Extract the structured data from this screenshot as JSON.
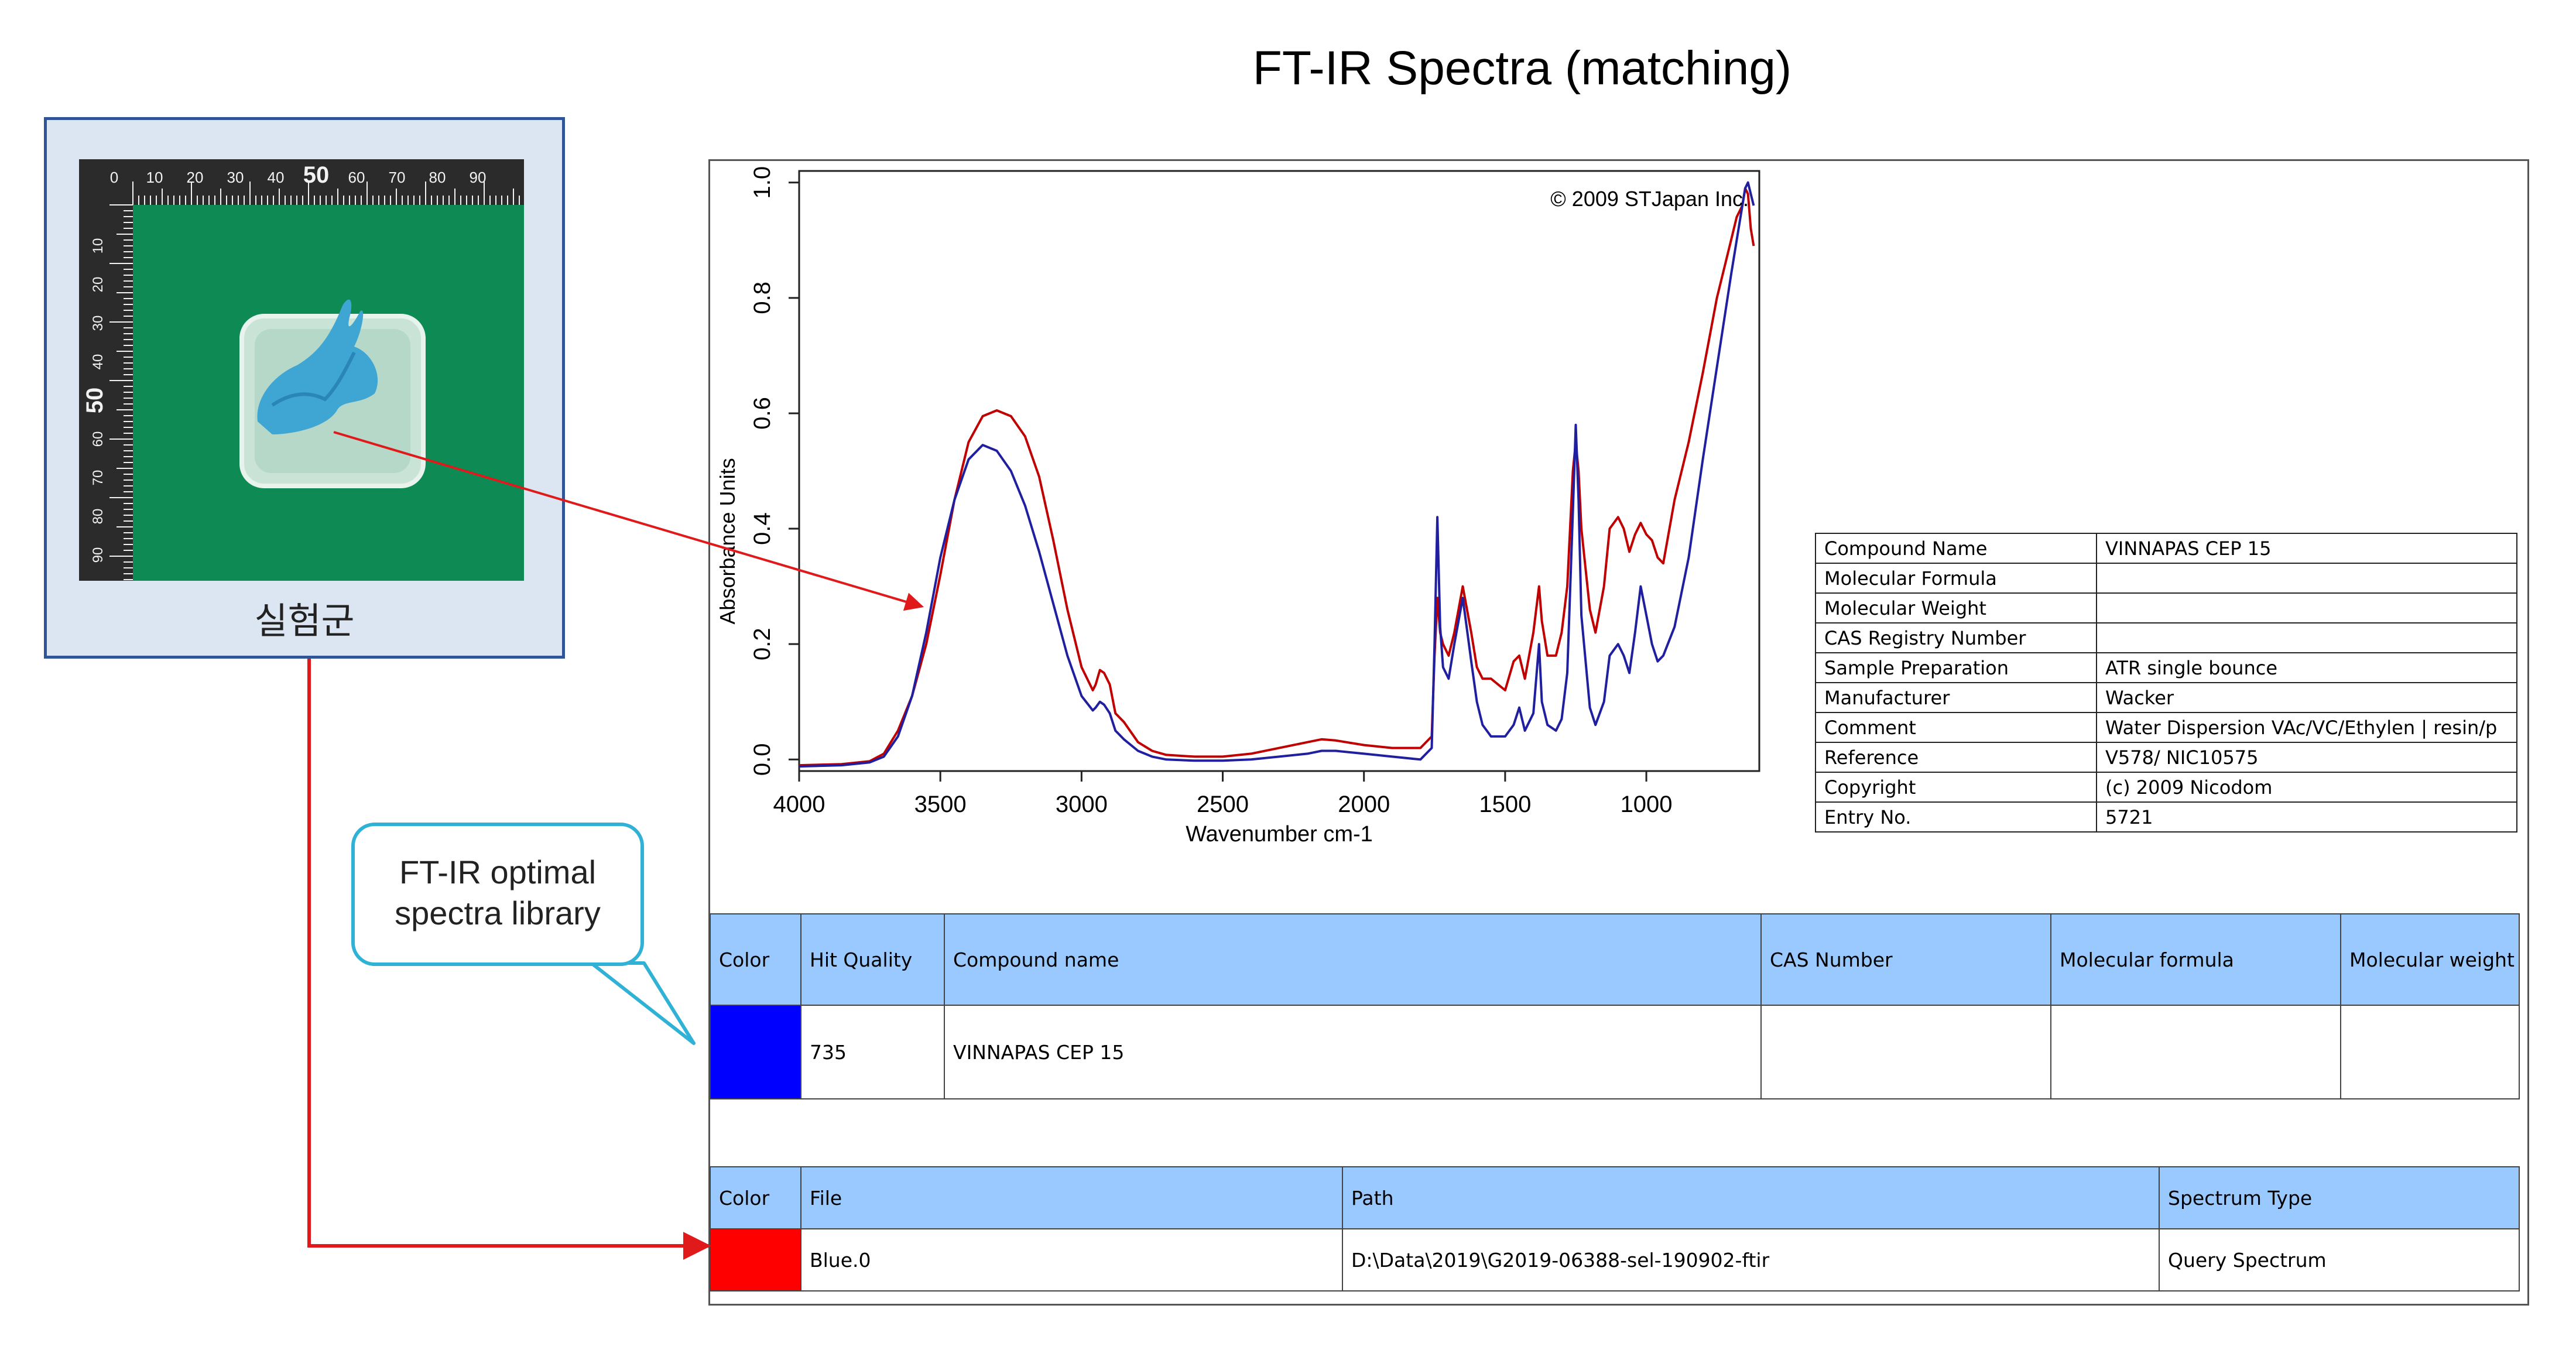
{
  "title": "FT-IR Spectra (matching)",
  "sample": {
    "caption": "실험군",
    "ruler_top_labels": [
      "0",
      "10",
      "20",
      "30",
      "40",
      "50",
      "60",
      "70",
      "80",
      "90"
    ],
    "ruler_left_labels": [
      "10",
      "20",
      "30",
      "40",
      "50",
      "60",
      "70",
      "80",
      "90"
    ]
  },
  "callout": {
    "line1": "FT-IR optimal",
    "line2": "spectra library"
  },
  "chart_data": {
    "type": "line",
    "title": "",
    "watermark": "© 2009 STJapan Inc.",
    "xlabel": "Wavenumber cm-1",
    "ylabel": "Absorbance Units",
    "xlim": [
      4000,
      600
    ],
    "ylim": [
      -0.02,
      1.02
    ],
    "x_ticks": [
      4000,
      3500,
      3000,
      2500,
      2000,
      1500,
      1000
    ],
    "x_tick_labels": [
      "4000",
      "3500",
      "3000",
      "2500",
      "2000",
      "1500",
      "1000"
    ],
    "y_ticks": [
      0.0,
      0.2,
      0.4,
      0.6,
      0.8,
      1.0
    ],
    "y_tick_labels": [
      "0.0",
      "0.2",
      "0.4",
      "0.6",
      "0.8",
      "1.0"
    ],
    "grid": false,
    "series": [
      {
        "color": "#c00000",
        "x": [
          4000,
          3850,
          3750,
          3700,
          3650,
          3600,
          3550,
          3500,
          3450,
          3400,
          3350,
          3300,
          3250,
          3200,
          3150,
          3100,
          3050,
          3000,
          2960,
          2950,
          2935,
          2920,
          2900,
          2880,
          2870,
          2850,
          2800,
          2750,
          2700,
          2600,
          2500,
          2400,
          2300,
          2200,
          2150,
          2100,
          2000,
          1900,
          1800,
          1760,
          1750,
          1740,
          1730,
          1720,
          1700,
          1680,
          1650,
          1620,
          1600,
          1580,
          1550,
          1500,
          1470,
          1450,
          1430,
          1400,
          1380,
          1370,
          1350,
          1320,
          1300,
          1280,
          1260,
          1250,
          1240,
          1230,
          1200,
          1180,
          1150,
          1130,
          1100,
          1080,
          1060,
          1040,
          1020,
          1000,
          980,
          960,
          940,
          900,
          850,
          800,
          750,
          700,
          680,
          660,
          650,
          640,
          630,
          620
        ],
        "y": [
          -0.01,
          -0.008,
          -0.003,
          0.01,
          0.05,
          0.11,
          0.2,
          0.32,
          0.45,
          0.55,
          0.595,
          0.605,
          0.595,
          0.56,
          0.49,
          0.38,
          0.26,
          0.16,
          0.12,
          0.13,
          0.155,
          0.15,
          0.13,
          0.08,
          0.075,
          0.065,
          0.03,
          0.015,
          0.008,
          0.005,
          0.005,
          0.01,
          0.02,
          0.03,
          0.035,
          0.033,
          0.025,
          0.02,
          0.02,
          0.04,
          0.18,
          0.28,
          0.22,
          0.2,
          0.18,
          0.22,
          0.3,
          0.22,
          0.16,
          0.14,
          0.14,
          0.12,
          0.17,
          0.18,
          0.14,
          0.22,
          0.3,
          0.24,
          0.18,
          0.18,
          0.22,
          0.3,
          0.5,
          0.55,
          0.5,
          0.4,
          0.26,
          0.22,
          0.3,
          0.4,
          0.42,
          0.4,
          0.36,
          0.39,
          0.41,
          0.39,
          0.38,
          0.35,
          0.34,
          0.45,
          0.55,
          0.67,
          0.8,
          0.9,
          0.94,
          0.96,
          0.99,
          0.98,
          0.92,
          0.89
        ]
      },
      {
        "color": "#1f1f9f",
        "x": [
          4000,
          3850,
          3750,
          3700,
          3650,
          3600,
          3550,
          3500,
          3450,
          3400,
          3350,
          3300,
          3250,
          3200,
          3150,
          3100,
          3050,
          3000,
          2960,
          2950,
          2935,
          2920,
          2900,
          2880,
          2870,
          2850,
          2800,
          2750,
          2700,
          2600,
          2500,
          2400,
          2300,
          2200,
          2150,
          2100,
          2000,
          1900,
          1800,
          1760,
          1750,
          1740,
          1730,
          1720,
          1700,
          1680,
          1650,
          1620,
          1600,
          1580,
          1550,
          1500,
          1470,
          1450,
          1430,
          1400,
          1380,
          1370,
          1350,
          1320,
          1300,
          1280,
          1260,
          1250,
          1240,
          1230,
          1200,
          1180,
          1150,
          1130,
          1100,
          1080,
          1060,
          1040,
          1020,
          1000,
          980,
          960,
          940,
          900,
          850,
          800,
          750,
          700,
          680,
          660,
          650,
          640,
          630,
          620
        ],
        "y": [
          -0.012,
          -0.01,
          -0.005,
          0.005,
          0.04,
          0.11,
          0.22,
          0.35,
          0.45,
          0.52,
          0.545,
          0.535,
          0.5,
          0.44,
          0.36,
          0.27,
          0.18,
          0.11,
          0.085,
          0.09,
          0.1,
          0.095,
          0.08,
          0.05,
          0.045,
          0.035,
          0.015,
          0.005,
          0.0,
          -0.002,
          -0.002,
          0.0,
          0.005,
          0.01,
          0.015,
          0.015,
          0.01,
          0.005,
          0.0,
          0.02,
          0.2,
          0.42,
          0.23,
          0.16,
          0.14,
          0.2,
          0.28,
          0.17,
          0.1,
          0.06,
          0.04,
          0.04,
          0.06,
          0.09,
          0.05,
          0.08,
          0.2,
          0.1,
          0.06,
          0.05,
          0.07,
          0.15,
          0.43,
          0.58,
          0.45,
          0.25,
          0.09,
          0.06,
          0.1,
          0.18,
          0.2,
          0.18,
          0.15,
          0.22,
          0.3,
          0.25,
          0.2,
          0.17,
          0.18,
          0.23,
          0.35,
          0.52,
          0.68,
          0.84,
          0.9,
          0.96,
          0.99,
          1.0,
          0.98,
          0.96
        ]
      }
    ]
  },
  "meta_table": {
    "rows": [
      {
        "key": "Compound Name",
        "value": "VINNAPAS CEP 15"
      },
      {
        "key": "Molecular Formula",
        "value": ""
      },
      {
        "key": "Molecular Weight",
        "value": ""
      },
      {
        "key": "CAS Registry Number",
        "value": ""
      },
      {
        "key": "Sample Preparation",
        "value": "ATR single bounce"
      },
      {
        "key": "Manufacturer",
        "value": "Wacker"
      },
      {
        "key": "Comment",
        "value": "Water Dispersion VAc/VC/Ethylen | resin/p"
      },
      {
        "key": "Reference",
        "value": "V578/ NIC10575"
      },
      {
        "key": "Copyright",
        "value": "(c) 2009 Nicodom"
      },
      {
        "key": "Entry No.",
        "value": "5721"
      }
    ]
  },
  "hit_table": {
    "headers": [
      "Color",
      "Hit Quality",
      "Compound name",
      "CAS Number",
      "Molecular formula",
      "Molecular weight"
    ],
    "row": {
      "color": "#0000ff",
      "hit_quality": "735",
      "compound_name": "VINNAPAS CEP 15",
      "cas_number": "",
      "molecular_formula": "",
      "molecular_weight": ""
    }
  },
  "file_table": {
    "headers": [
      "Color",
      "File",
      "Path",
      "Spectrum Type"
    ],
    "row": {
      "color": "#ff0000",
      "file": "Blue.0",
      "path": "D:\\Data\\2019\\G2019-06388-sel-190902-ftir",
      "spectrum_type": "Query Spectrum"
    }
  },
  "colors": {
    "card_bg": "#dce6f2",
    "card_border": "#2f5597",
    "header_bg": "#99c9ff",
    "callout_border": "#2fb2d6",
    "arrow": "#e0191b"
  }
}
